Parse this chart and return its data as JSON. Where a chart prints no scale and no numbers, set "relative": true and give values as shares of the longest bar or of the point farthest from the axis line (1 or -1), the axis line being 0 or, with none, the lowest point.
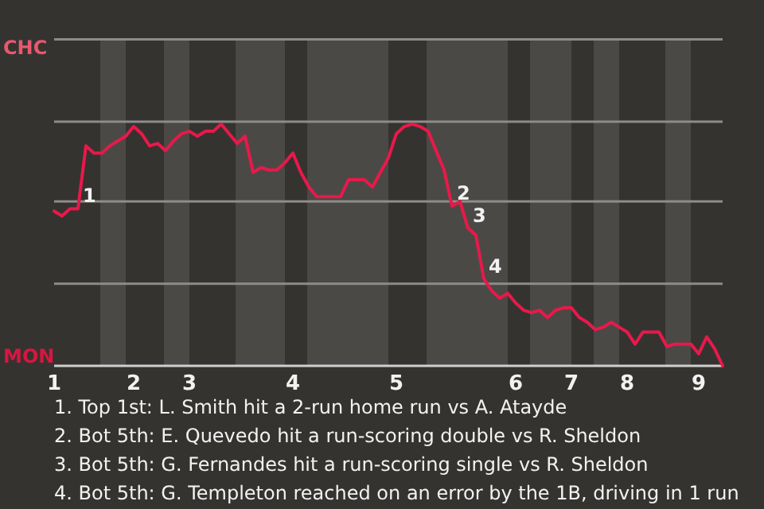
{
  "chart_data": {
    "type": "line",
    "relative": true,
    "categories": [
      "1",
      null,
      null,
      null,
      null,
      null,
      null,
      null,
      null,
      null,
      "2",
      null,
      null,
      null,
      null,
      null,
      null,
      "3",
      null,
      null,
      null,
      null,
      null,
      null,
      null,
      null,
      null,
      null,
      null,
      null,
      "4",
      null,
      null,
      null,
      null,
      null,
      null,
      null,
      null,
      null,
      null,
      null,
      null,
      "5",
      null,
      null,
      null,
      null,
      null,
      null,
      null,
      null,
      null,
      null,
      null,
      null,
      null,
      null,
      "6",
      null,
      null,
      null,
      null,
      null,
      null,
      "7",
      null,
      null,
      null,
      null,
      null,
      null,
      "8",
      null,
      null,
      null,
      null,
      null,
      null,
      null,
      null,
      "9",
      null,
      null,
      null
    ],
    "series": [
      {
        "color": "#e8194a",
        "values": [
          0.64,
          0.62,
          0.65,
          0.65,
          0.91,
          0.88,
          0.88,
          0.91,
          0.93,
          0.95,
          0.99,
          0.96,
          0.91,
          0.92,
          0.89,
          0.93,
          0.96,
          0.97,
          0.95,
          0.97,
          0.97,
          1,
          0.96,
          0.92,
          0.95,
          0.8,
          0.82,
          0.81,
          0.81,
          0.84,
          0.88,
          0.8,
          0.74,
          0.7,
          0.7,
          0.7,
          0.7,
          0.77,
          0.77,
          0.77,
          0.74,
          0.8,
          0.86,
          0.96,
          0.99,
          1,
          0.99,
          0.97,
          0.89,
          0.81,
          0.66,
          0.68,
          0.57,
          0.54,
          0.36,
          0.31,
          0.28,
          0.3,
          0.26,
          0.23,
          0.22,
          0.23,
          0.2,
          0.23,
          0.24,
          0.24,
          0.2,
          0.18,
          0.15,
          0.16,
          0.18,
          0.16,
          0.14,
          0.09,
          0.14,
          0.14,
          0.14,
          0.08,
          0.09,
          0.09,
          0.09,
          0.05,
          0.12,
          0.07,
          0
        ]
      }
    ],
    "marker": "none",
    "line_style": "solid",
    "ref_lines": [
      {
        "axis": "y",
        "value": 0.34,
        "color": "#8e8c89"
      },
      {
        "axis": "y",
        "value": 0.68,
        "color": "#8e8c89"
      },
      {
        "axis": "y",
        "value": 1.01,
        "color": "#8e8c89"
      },
      {
        "axis": "y",
        "value": 1.35,
        "color": "#8e8c89"
      }
    ],
    "annotations": [
      "CHC",
      "MON",
      {
        "text": "1",
        "y": 0.65
      },
      {
        "text": "2",
        "y": 0.66
      },
      {
        "text": "3",
        "y": 0.57
      },
      {
        "text": "4",
        "y": 0.36
      },
      "1. Top 1st: L. Smith hit a 2-run home run vs A. Atayde",
      "2. Bot 5th: E. Quevedo hit a run-scoring double vs R. Sheldon",
      "3. Bot 5th: G. Fernandes hit a run-scoring single vs R. Sheldon",
      "4. Bot 5th: G. Templeton reached on an error by the 1B, driving in 1 run"
    ]
  }
}
